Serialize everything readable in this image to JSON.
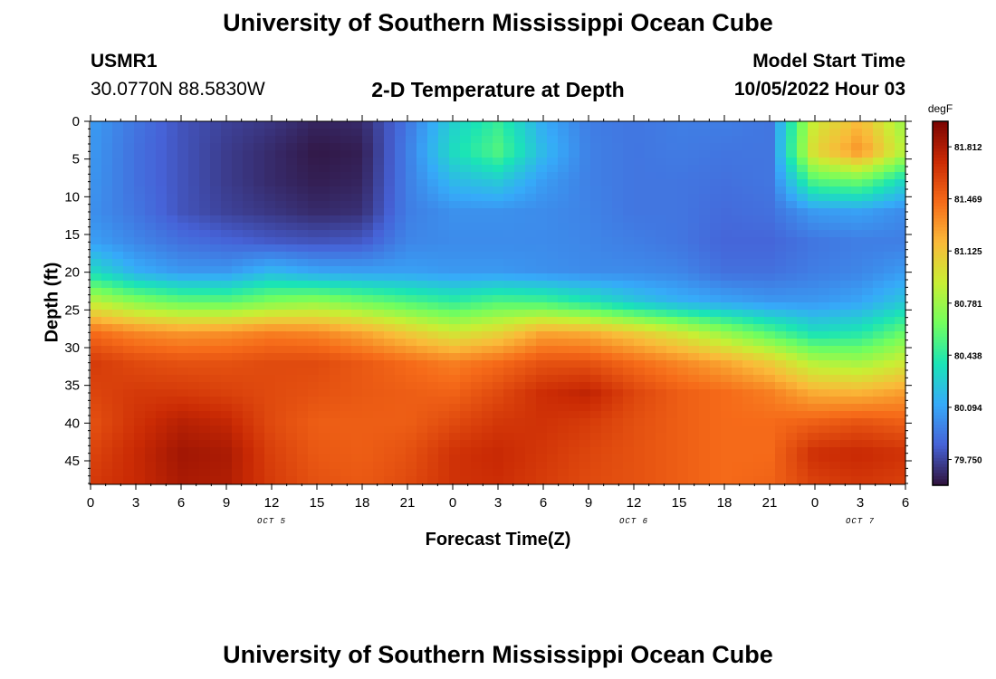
{
  "header": {
    "title": "University of Southern Mississippi Ocean Cube",
    "station": "USMR1",
    "coords": "30.0770N  88.5830W",
    "chart_title": "2-D Temperature at Depth",
    "model_start_label": "Model Start Time",
    "model_start_value": "10/05/2022 Hour 03"
  },
  "footer": {
    "title": "University of Southern Mississippi Ocean Cube"
  },
  "chart_data": {
    "type": "heatmap",
    "title": "2-D Temperature at Depth",
    "xlabel": "Forecast Time(Z)",
    "ylabel": "Depth (ft)",
    "x_hours": [
      0,
      3,
      6,
      9,
      12,
      15,
      18,
      21,
      24,
      27,
      30,
      33,
      36,
      39,
      42,
      45,
      48,
      51,
      54
    ],
    "x_tick_labels": [
      "0",
      "3",
      "6",
      "9",
      "12",
      "15",
      "18",
      "21",
      "0",
      "3",
      "6",
      "9",
      "12",
      "15",
      "18",
      "21",
      "0",
      "3",
      "6"
    ],
    "day_labels": [
      {
        "label": "OCT 5",
        "hour": 12
      },
      {
        "label": "OCT 6",
        "hour": 36
      },
      {
        "label": "OCT 7",
        "hour": 51
      }
    ],
    "y_ticks": [
      0,
      5,
      10,
      15,
      20,
      25,
      30,
      35,
      40,
      45
    ],
    "ylim": [
      0,
      48
    ],
    "xlim": [
      0,
      54
    ],
    "depths": [
      0,
      4,
      8,
      12,
      16,
      20,
      24,
      28,
      32,
      36,
      40,
      44,
      48
    ],
    "temperature": [
      [
        80.06,
        79.92,
        79.8,
        79.74,
        79.7,
        79.64,
        79.66,
        79.92,
        80.28,
        80.46,
        80.12,
        79.95,
        79.92,
        79.95,
        79.95,
        79.92,
        80.95,
        81.18,
        80.75
      ],
      [
        80.05,
        79.9,
        79.8,
        79.72,
        79.66,
        79.6,
        79.62,
        79.95,
        80.34,
        80.55,
        80.18,
        79.96,
        79.92,
        79.94,
        79.92,
        79.92,
        81.05,
        81.32,
        80.85
      ],
      [
        80.04,
        79.9,
        79.8,
        79.72,
        79.66,
        79.62,
        79.64,
        79.95,
        80.18,
        80.25,
        80.06,
        79.96,
        79.92,
        79.92,
        79.9,
        79.92,
        80.55,
        80.62,
        80.3
      ],
      [
        80.02,
        79.92,
        79.8,
        79.74,
        79.7,
        79.66,
        79.68,
        79.95,
        80.02,
        80.02,
        80.0,
        79.97,
        79.92,
        79.92,
        79.88,
        79.9,
        80.06,
        80.08,
        80.0
      ],
      [
        80.08,
        79.98,
        79.9,
        79.86,
        79.82,
        79.8,
        79.82,
        79.98,
        80.0,
        80.0,
        80.0,
        79.98,
        79.95,
        79.92,
        79.86,
        79.86,
        79.92,
        79.95,
        79.95
      ],
      [
        80.35,
        80.14,
        80.05,
        80.05,
        80.18,
        80.1,
        80.08,
        80.08,
        80.05,
        80.05,
        80.02,
        80.0,
        80.0,
        79.98,
        79.9,
        79.9,
        79.95,
        79.98,
        80.06
      ],
      [
        80.9,
        80.72,
        80.62,
        80.6,
        80.7,
        80.75,
        80.65,
        80.55,
        80.46,
        80.55,
        80.52,
        80.4,
        80.25,
        80.15,
        80.1,
        80.05,
        80.05,
        80.1,
        80.25
      ],
      [
        81.45,
        81.35,
        81.3,
        81.32,
        81.38,
        81.35,
        81.25,
        81.1,
        80.95,
        81.05,
        81.25,
        81.22,
        81.1,
        80.95,
        80.75,
        80.55,
        80.35,
        80.4,
        80.62
      ],
      [
        81.65,
        81.58,
        81.55,
        81.55,
        81.58,
        81.58,
        81.52,
        81.45,
        81.38,
        81.45,
        81.55,
        81.55,
        81.45,
        81.35,
        81.25,
        81.1,
        80.85,
        80.8,
        80.95
      ],
      [
        81.6,
        81.65,
        81.65,
        81.62,
        81.58,
        81.55,
        81.52,
        81.5,
        81.48,
        81.58,
        81.7,
        81.75,
        81.6,
        81.5,
        81.45,
        81.38,
        81.22,
        81.2,
        81.28
      ],
      [
        81.55,
        81.68,
        81.78,
        81.74,
        81.58,
        81.5,
        81.5,
        81.5,
        81.58,
        81.66,
        81.68,
        81.64,
        81.56,
        81.5,
        81.45,
        81.45,
        81.5,
        81.55,
        81.5
      ],
      [
        81.6,
        81.72,
        81.85,
        81.82,
        81.62,
        81.52,
        81.5,
        81.55,
        81.68,
        81.72,
        81.66,
        81.6,
        81.55,
        81.5,
        81.45,
        81.45,
        81.7,
        81.72,
        81.68
      ],
      [
        81.65,
        81.72,
        81.82,
        81.8,
        81.64,
        81.55,
        81.52,
        81.58,
        81.68,
        81.7,
        81.64,
        81.58,
        81.55,
        81.5,
        81.45,
        81.48,
        81.62,
        81.66,
        81.62
      ]
    ],
    "colorbar": {
      "unit": "degF",
      "labels": [
        "81.812",
        "81.469",
        "81.125",
        "80.781",
        "80.438",
        "80.094",
        "79.750"
      ],
      "vmin": 79.58,
      "vmax": 81.98,
      "colors": [
        "#30123b",
        "#4662d7",
        "#36aaf9",
        "#1ae4b6",
        "#72fe5e",
        "#c8ef34",
        "#faba39",
        "#f66b19",
        "#ca2a04",
        "#7a0403"
      ]
    }
  }
}
